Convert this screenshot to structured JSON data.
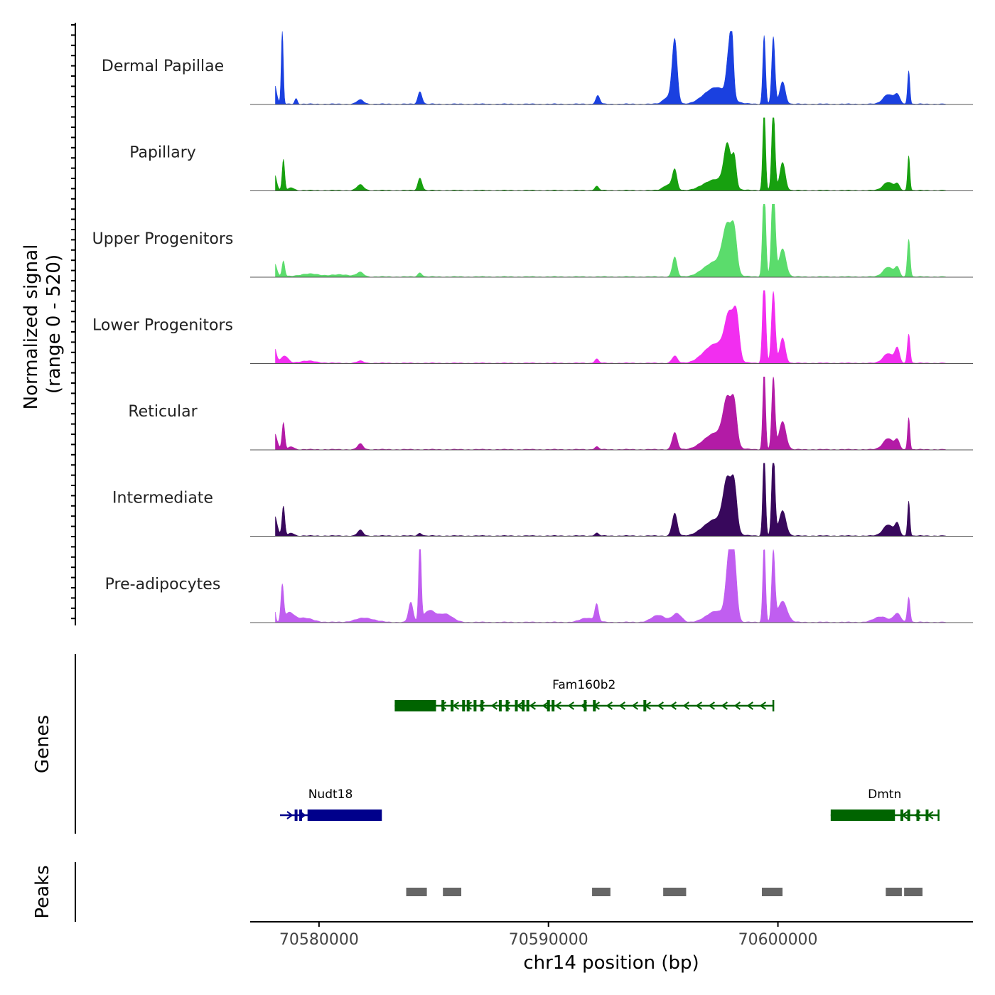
{
  "chart_data": {
    "type": "area",
    "chromosome": "chr14",
    "xlabel": "chr14 position (bp)",
    "xlim": [
      70577000,
      70608500
    ],
    "xticks": [
      70580000,
      70590000,
      70600000
    ],
    "xtick_labels": [
      "70580000",
      "70590000",
      "70600000"
    ],
    "coverage": {
      "ylabel_line1": "Normalized signal",
      "ylabel_line2": "(range 0 - 520)",
      "ylim": [
        0,
        520
      ],
      "tracks": [
        {
          "name": "Dermal Papillae",
          "color": "#1a40e0",
          "peaks": [
            [
              70578000,
              95,
              120
            ],
            [
              70578100,
              100,
              60
            ],
            [
              70578400,
              45,
              520
            ],
            [
              70579000,
              60,
              40
            ],
            [
              70581800,
              150,
              30
            ],
            [
              70584400,
              90,
              90
            ],
            [
              70592150,
              90,
              60
            ],
            [
              70595500,
              110,
              450
            ],
            [
              70595200,
              200,
              50
            ],
            [
              70597300,
              500,
              120
            ],
            [
              70597900,
              120,
              360
            ],
            [
              70598000,
              70,
              240
            ],
            [
              70599400,
              60,
              490
            ],
            [
              70599800,
              70,
              480
            ],
            [
              70600200,
              120,
              160
            ],
            [
              70604800,
              220,
              70
            ],
            [
              70605200,
              120,
              60
            ],
            [
              70605700,
              50,
              240
            ]
          ]
        },
        {
          "name": "Papillary",
          "color": "#17a00f",
          "peaks": [
            [
              70578050,
              100,
              120
            ],
            [
              70578450,
              55,
              220
            ],
            [
              70578800,
              120,
              20
            ],
            [
              70581800,
              150,
              40
            ],
            [
              70584400,
              90,
              90
            ],
            [
              70592100,
              90,
              30
            ],
            [
              70595500,
              100,
              140
            ],
            [
              70595200,
              200,
              40
            ],
            [
              70597300,
              500,
              80
            ],
            [
              70597800,
              150,
              290
            ],
            [
              70598100,
              90,
              200
            ],
            [
              70599400,
              60,
              590
            ],
            [
              70599800,
              70,
              600
            ],
            [
              70600200,
              120,
              200
            ],
            [
              70604800,
              220,
              60
            ],
            [
              70605200,
              100,
              40
            ],
            [
              70605700,
              50,
              250
            ]
          ]
        },
        {
          "name": "Upper Progenitors",
          "color": "#5bdc6c",
          "peaks": [
            [
              70578050,
              110,
              100
            ],
            [
              70578450,
              60,
              110
            ],
            [
              70579600,
              500,
              20
            ],
            [
              70581000,
              400,
              15
            ],
            [
              70581800,
              150,
              30
            ],
            [
              70584400,
              90,
              30
            ],
            [
              70595500,
              100,
              140
            ],
            [
              70597300,
              500,
              110
            ],
            [
              70597800,
              200,
              310
            ],
            [
              70598100,
              120,
              240
            ],
            [
              70599400,
              70,
              640
            ],
            [
              70599800,
              80,
              680
            ],
            [
              70600200,
              150,
              200
            ],
            [
              70604800,
              220,
              70
            ],
            [
              70605200,
              100,
              60
            ],
            [
              70605700,
              60,
              270
            ]
          ]
        },
        {
          "name": "Lower Progenitors",
          "color": "#f22ef0",
          "peaks": [
            [
              70578000,
              120,
              140
            ],
            [
              70578500,
              150,
              50
            ],
            [
              70579500,
              400,
              15
            ],
            [
              70581800,
              150,
              15
            ],
            [
              70592100,
              90,
              30
            ],
            [
              70595500,
              120,
              50
            ],
            [
              70597300,
              500,
              140
            ],
            [
              70597900,
              200,
              300
            ],
            [
              70598200,
              120,
              260
            ],
            [
              70599400,
              70,
              620
            ],
            [
              70599800,
              80,
              510
            ],
            [
              70600200,
              120,
              180
            ],
            [
              70604800,
              220,
              70
            ],
            [
              70605200,
              100,
              100
            ],
            [
              70605700,
              60,
              210
            ]
          ]
        },
        {
          "name": "Reticular",
          "color": "#b31ba6",
          "peaks": [
            [
              70578050,
              120,
              120
            ],
            [
              70578450,
              60,
              190
            ],
            [
              70578800,
              120,
              20
            ],
            [
              70581800,
              120,
              40
            ],
            [
              70592100,
              90,
              20
            ],
            [
              70595500,
              110,
              120
            ],
            [
              70597300,
              500,
              120
            ],
            [
              70597800,
              180,
              300
            ],
            [
              70598100,
              120,
              260
            ],
            [
              70599400,
              60,
              570
            ],
            [
              70599800,
              70,
              520
            ],
            [
              70600200,
              150,
              200
            ],
            [
              70604800,
              220,
              80
            ],
            [
              70605200,
              100,
              60
            ],
            [
              70605700,
              50,
              230
            ]
          ]
        },
        {
          "name": "Intermediate",
          "color": "#38085c",
          "peaks": [
            [
              70578050,
              120,
              150
            ],
            [
              70578450,
              60,
              210
            ],
            [
              70578800,
              120,
              20
            ],
            [
              70581800,
              120,
              40
            ],
            [
              70584400,
              90,
              20
            ],
            [
              70592100,
              90,
              20
            ],
            [
              70595500,
              110,
              160
            ],
            [
              70597300,
              500,
              120
            ],
            [
              70597800,
              180,
              340
            ],
            [
              70598100,
              120,
              290
            ],
            [
              70599400,
              60,
              600
            ],
            [
              70599800,
              70,
              620
            ],
            [
              70600200,
              150,
              180
            ],
            [
              70604800,
              220,
              80
            ],
            [
              70605200,
              100,
              80
            ],
            [
              70605700,
              50,
              250
            ]
          ]
        },
        {
          "name": "Pre-adipocytes",
          "color": "#c05ef0",
          "peaks": [
            [
              70578000,
              70,
              200
            ],
            [
              70578400,
              60,
              250
            ],
            [
              70578700,
              200,
              60
            ],
            [
              70579300,
              400,
              30
            ],
            [
              70582000,
              400,
              30
            ],
            [
              70584000,
              100,
              140
            ],
            [
              70584400,
              55,
              600
            ],
            [
              70584800,
              250,
              80
            ],
            [
              70585500,
              300,
              60
            ],
            [
              70592100,
              80,
              120
            ],
            [
              70591700,
              300,
              30
            ],
            [
              70594800,
              300,
              50
            ],
            [
              70595600,
              200,
              60
            ],
            [
              70597300,
              400,
              80
            ],
            [
              70597900,
              150,
              480
            ],
            [
              70598100,
              120,
              320
            ],
            [
              70599400,
              60,
              560
            ],
            [
              70599800,
              70,
              500
            ],
            [
              70600200,
              200,
              150
            ],
            [
              70604500,
              300,
              40
            ],
            [
              70605200,
              150,
              60
            ],
            [
              70605700,
              60,
              180
            ]
          ]
        }
      ]
    },
    "genes": {
      "label": "Genes",
      "items": [
        {
          "name": "Fam160b2",
          "color": "#006400",
          "strand": "-",
          "start": 70583300,
          "end": 70599800,
          "coding": [
            [
              70583300,
              70585100
            ]
          ],
          "exons": [
            70585400,
            70585800,
            70586300,
            70586500,
            70586800,
            70587100,
            70587900,
            70588200,
            70588600,
            70588900,
            70589100,
            70590000,
            70590200,
            70591600,
            70592000,
            70594200
          ]
        },
        {
          "name": "Nudt18",
          "color": "#00008b",
          "strand": "+",
          "start": 70578300,
          "end": 70582700,
          "coding": [
            [
              70579500,
              70582700
            ]
          ],
          "exons": [
            70579000,
            70579200
          ]
        },
        {
          "name": "Dmtn",
          "color": "#006400",
          "strand": "-",
          "start": 70602300,
          "end": 70607000,
          "coding": [
            [
              70602300,
              70605100
            ]
          ],
          "exons": [
            70605400,
            70605700,
            70606100,
            70606500
          ]
        }
      ]
    },
    "peaks_track": {
      "label": "Peaks",
      "color": "#666666",
      "regions": [
        [
          70583800,
          70584700
        ],
        [
          70585400,
          70586200
        ],
        [
          70591900,
          70592700
        ],
        [
          70595000,
          70596000
        ],
        [
          70599300,
          70600200
        ],
        [
          70604700,
          70605400
        ],
        [
          70605500,
          70606300
        ]
      ]
    }
  }
}
